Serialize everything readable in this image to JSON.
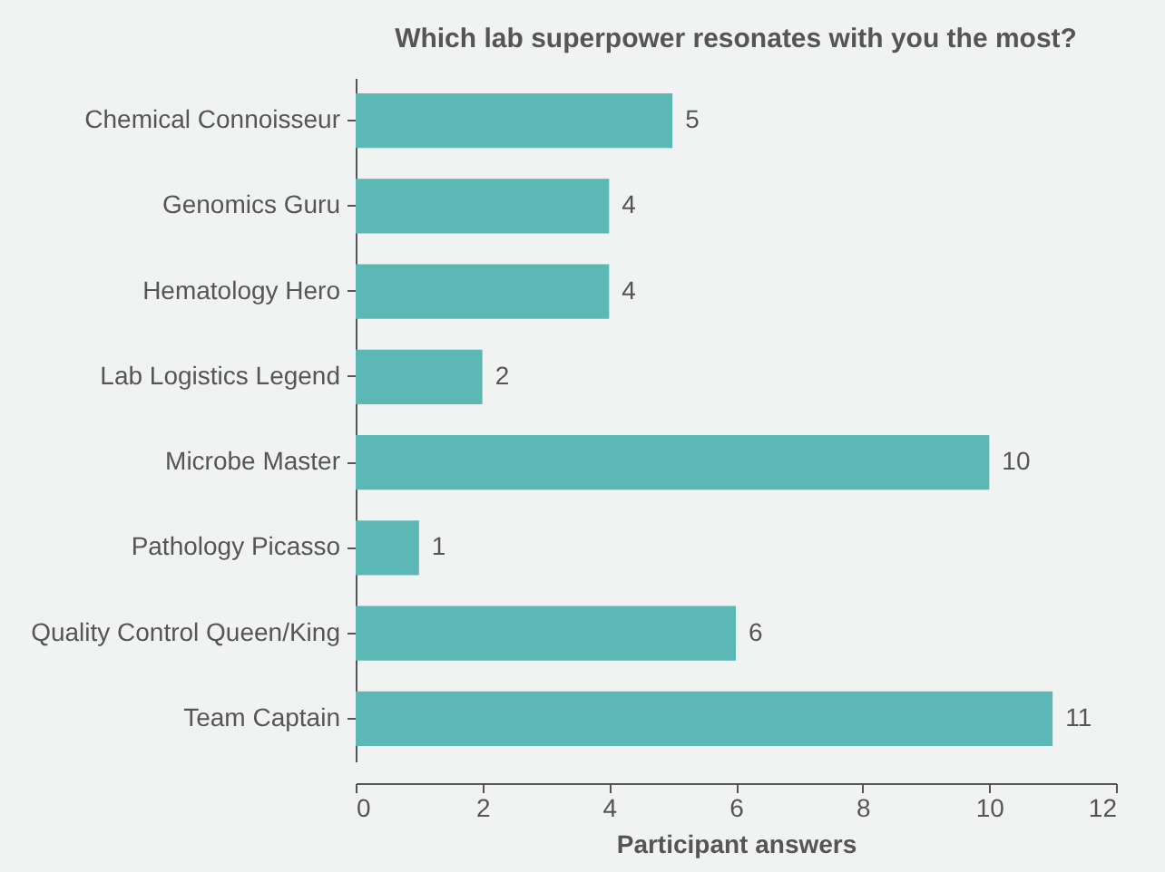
{
  "chart_data": {
    "type": "bar",
    "orientation": "horizontal",
    "title": "Which lab superpower resonates with you the most?",
    "xlabel": "Participant answers",
    "categories": [
      "Chemical Connoisseur",
      "Genomics Guru",
      "Hematology Hero",
      "Lab Logistics Legend",
      "Microbe Master",
      "Pathology Picasso",
      "Quality Control Queen/King",
      "Team Captain"
    ],
    "values": [
      5,
      4,
      4,
      2,
      10,
      1,
      6,
      11
    ],
    "color": "#5cb8b4",
    "xlim": [
      0,
      12
    ],
    "xticks": [
      0,
      2,
      4,
      6,
      8,
      10,
      12
    ],
    "data_labels": true,
    "grid": false
  }
}
